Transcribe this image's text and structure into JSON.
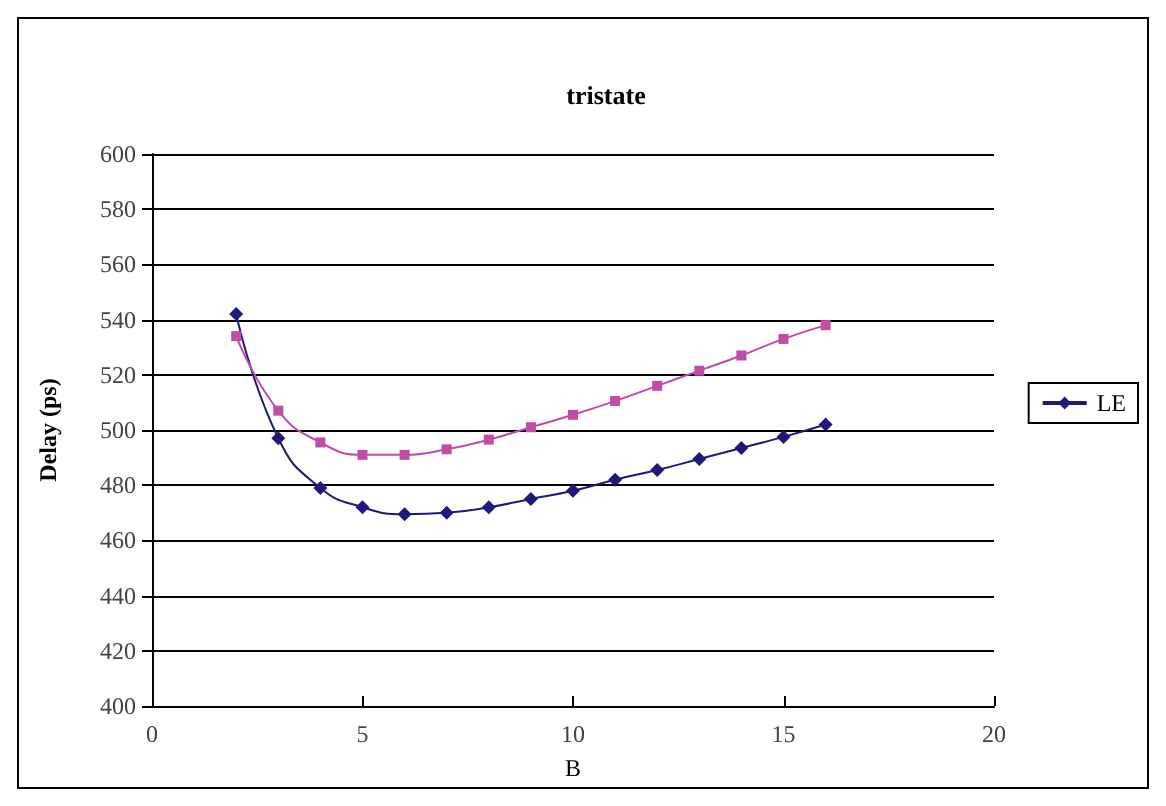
{
  "chart_data": {
    "type": "line",
    "title": "tristate",
    "xlabel": "B",
    "ylabel": "Delay (ps)",
    "x": [
      2,
      3,
      4,
      5,
      6,
      7,
      8,
      9,
      10,
      11,
      12,
      13,
      14,
      15,
      16
    ],
    "series": [
      {
        "name": "LE",
        "color": "#1f1a7a",
        "marker": "diamond",
        "values": [
          542,
          497,
          479,
          472,
          469.5,
          470,
          472,
          475,
          478,
          482,
          485.5,
          489.5,
          493.5,
          497.5,
          502
        ]
      },
      {
        "color": "#c04ca8",
        "marker": "square",
        "values": [
          534,
          507,
          495.5,
          491,
          491,
          493,
          496.5,
          501,
          505.5,
          510.5,
          516,
          521.5,
          527,
          533,
          538
        ]
      }
    ],
    "xlim": [
      0,
      20
    ],
    "xticks": [
      0,
      5,
      10,
      15,
      20
    ],
    "ylim": [
      400,
      600
    ],
    "yticks": [
      400,
      420,
      440,
      460,
      480,
      500,
      520,
      540,
      560,
      580,
      600
    ],
    "grid": "y",
    "legend": "right"
  }
}
